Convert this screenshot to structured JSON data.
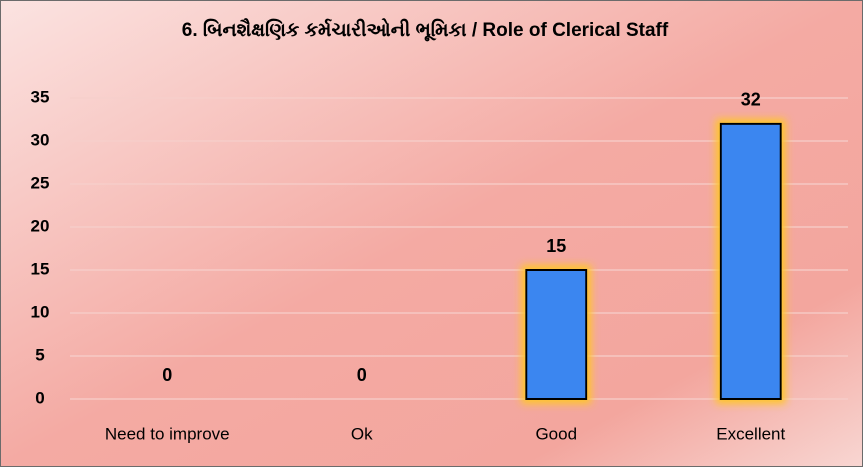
{
  "chart_data": {
    "type": "bar",
    "title": "6. બિનશૈક્ષણિક કર્મચારીઓની ભૂમિકા / Role of  Clerical Staff",
    "categories": [
      "Need to improve",
      "Ok",
      "Good",
      "Excellent"
    ],
    "values": [
      0,
      0,
      15,
      32
    ],
    "color": "#3b86f0",
    "ylim": [
      0,
      35
    ],
    "yticks": [
      0,
      5,
      10,
      15,
      20,
      25,
      30,
      35
    ],
    "grid": true
  }
}
